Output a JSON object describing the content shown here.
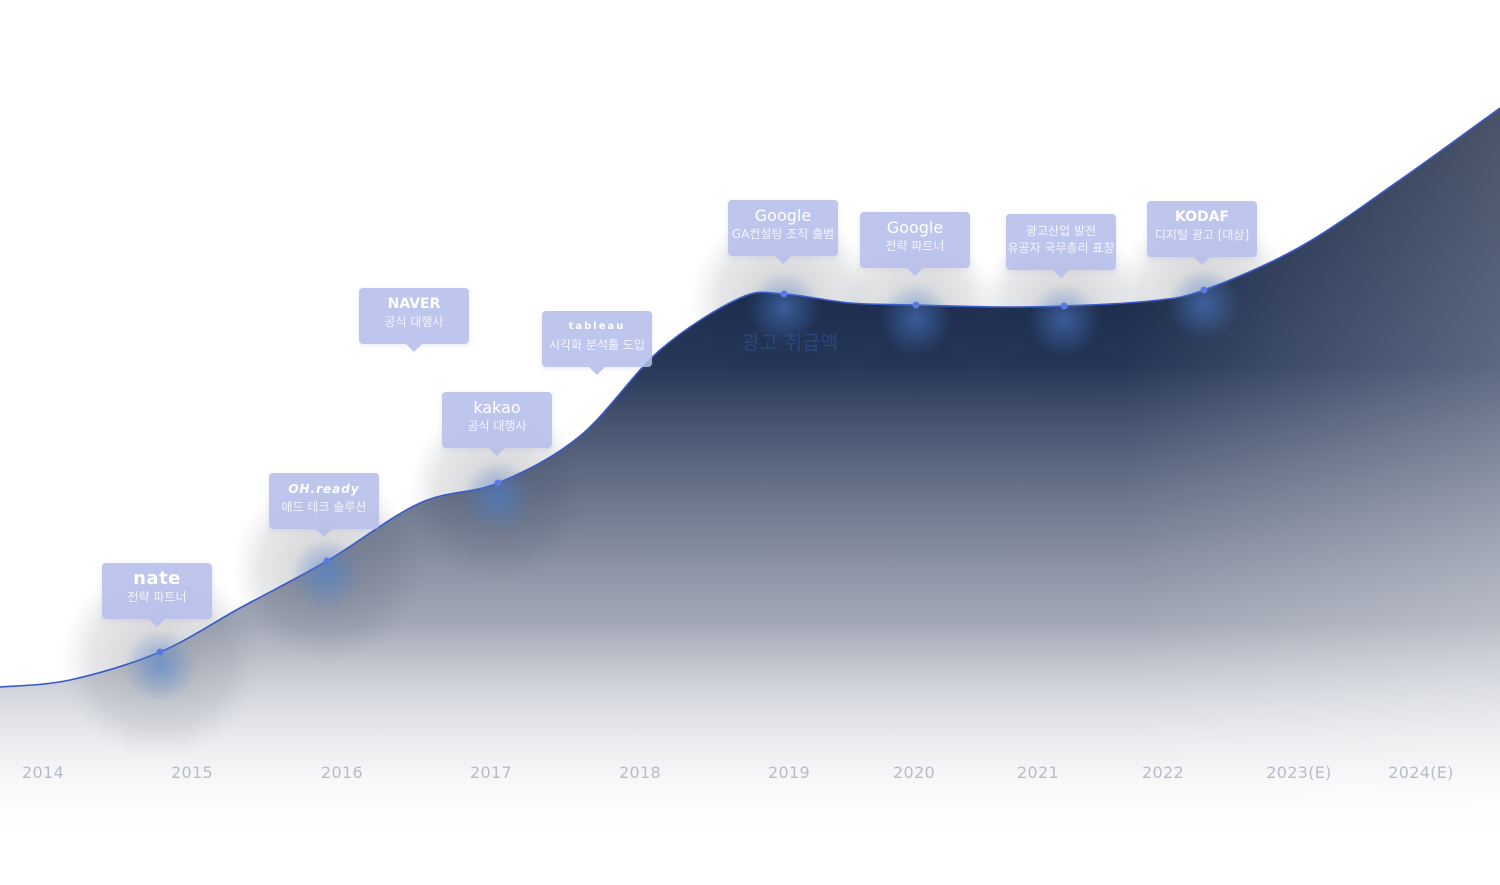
{
  "chart_data": {
    "type": "area",
    "x_labels": [
      "2014",
      "2015",
      "2016",
      "2017",
      "2018",
      "2019",
      "2020",
      "2021",
      "2022",
      "2023(E)",
      "2024(E)"
    ],
    "series_label": "광고 취급액",
    "curve_color": "#3a5bc7",
    "fill_color_top": "#0c1a36",
    "callout_color": "#b5beeb",
    "milestones": [
      {
        "logo": "nate",
        "text": "전략 파트너"
      },
      {
        "logo": "OH.ready",
        "text": "애드 테크 솔루션"
      },
      {
        "logo": "NAVER",
        "text": "공식 대행사"
      },
      {
        "logo": "kakao",
        "text": "공식 대행사"
      },
      {
        "logo": "tableau",
        "text": "시각화 분석툴 도입"
      },
      {
        "logo": "Google",
        "text": "GA컨설팅 조직 출범"
      },
      {
        "logo": "Google",
        "text": "전략 파트너"
      },
      {
        "logo": "",
        "text": "광고산업 발전",
        "text2": "유공자 국무총리 표창"
      },
      {
        "logo": "KODAF",
        "text": "디지털 광고 [대상]"
      }
    ]
  }
}
